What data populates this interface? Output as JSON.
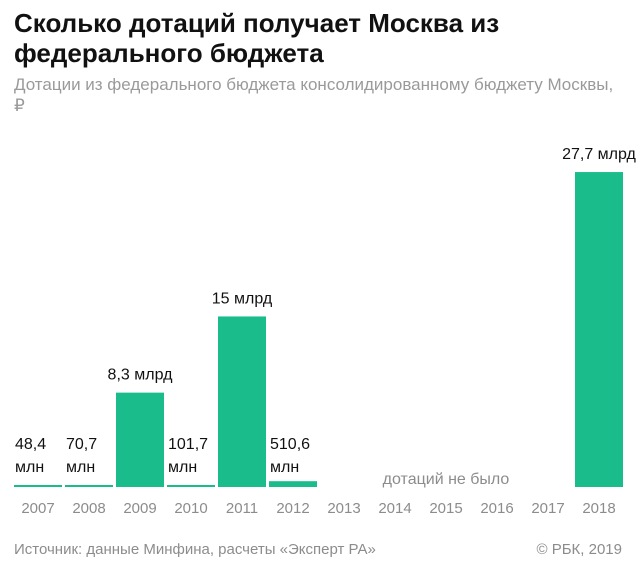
{
  "title": "Сколько дотаций получает Москва из федерального бюджета",
  "subtitle": "Дотации из федерального бюджета консолидированному бюджету Москвы, ₽",
  "source": "Источник: данные Минфина, расчеты «Эксперт РА»",
  "copyright": "© РБК, 2019",
  "colors": {
    "bar": "#1abc8c",
    "text": "#111111",
    "muted": "#8c8c8c"
  },
  "chart_data": {
    "type": "bar",
    "categories": [
      "2007",
      "2008",
      "2009",
      "2010",
      "2011",
      "2012",
      "2013",
      "2014",
      "2015",
      "2016",
      "2017",
      "2018"
    ],
    "unit": "млрд ₽",
    "values": [
      0.0484,
      0.0707,
      8.3,
      0.1017,
      15,
      0.5106,
      0,
      0,
      0,
      0,
      0,
      27.7
    ],
    "data_labels": [
      "48,4\nмлн",
      "70,7\nмлн",
      "8,3 млрд",
      "101,7\nмлн",
      "15 млрд",
      "510,6\nмлн",
      "",
      "",
      "",
      "",
      "",
      "27,7 млрд"
    ],
    "annotation": {
      "text": "дотаций не было",
      "span": [
        "2013",
        "2017"
      ]
    },
    "grid": false,
    "legend": "none"
  }
}
